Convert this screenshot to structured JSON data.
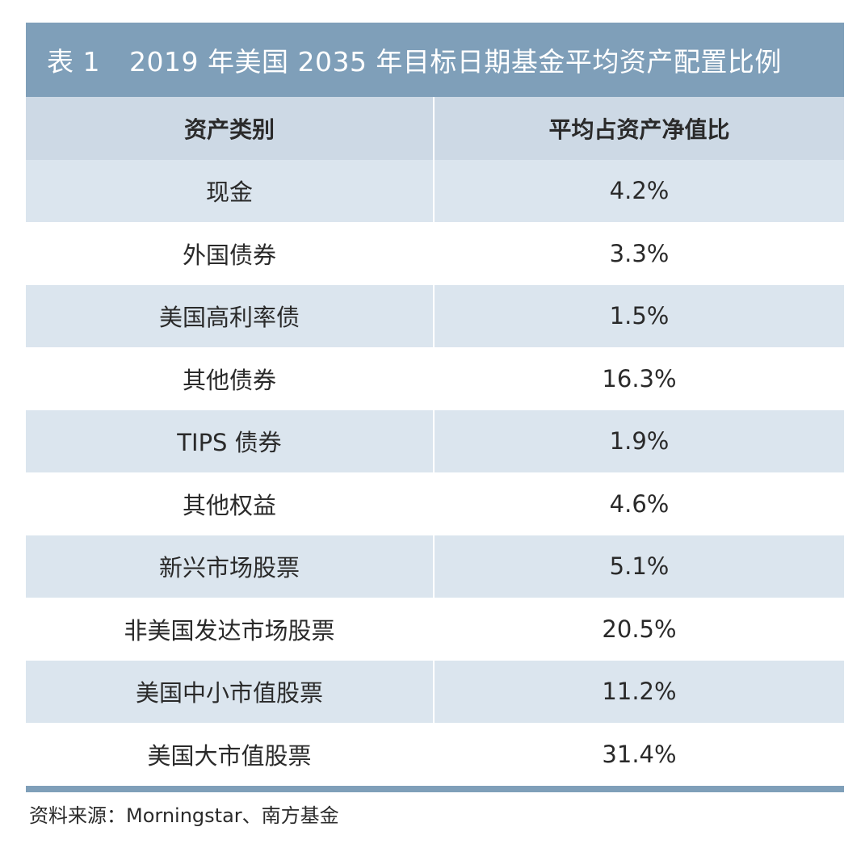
{
  "table": {
    "title_prefix": "表 1",
    "title": "2019 年美国 2035 年目标日期基金平均资产配置比例",
    "columns": [
      "资产类别",
      "平均占资产净值比"
    ],
    "rows": [
      {
        "category": "现金",
        "value": "4.2%"
      },
      {
        "category": "外国债券",
        "value": "3.3%"
      },
      {
        "category": "美国高利率债",
        "value": "1.5%"
      },
      {
        "category": "其他债券",
        "value": "16.3%"
      },
      {
        "category": "TIPS 债券",
        "value": "1.9%"
      },
      {
        "category": "其他权益",
        "value": "4.6%"
      },
      {
        "category": "新兴市场股票",
        "value": "5.1%"
      },
      {
        "category": "非美国发达市场股票",
        "value": "20.5%"
      },
      {
        "category": "美国中小市值股票",
        "value": "11.2%"
      },
      {
        "category": "美国大市值股票",
        "value": "31.4%"
      }
    ],
    "source": "资料来源：Morningstar、南方基金"
  },
  "colors": {
    "title_bar": "#7f9fb9",
    "header_row": "#cdd9e5",
    "shaded_row": "#dbe5ee",
    "plain_row": "#ffffff"
  }
}
